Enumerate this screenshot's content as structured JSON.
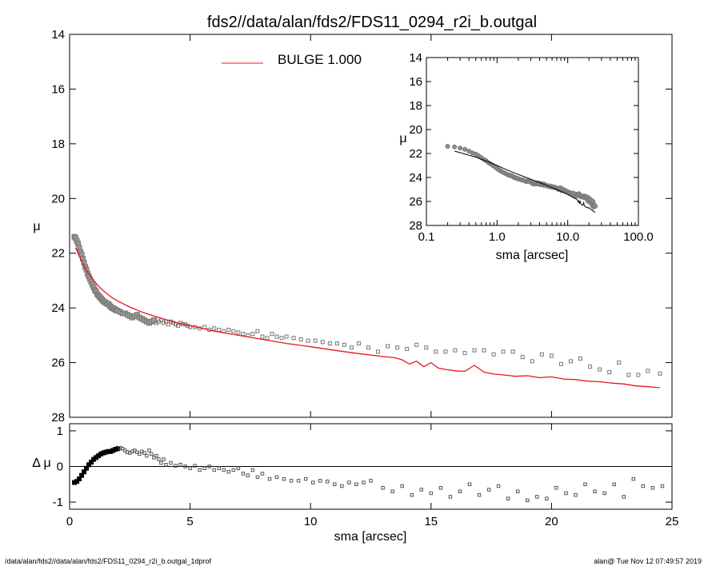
{
  "title": "fds2//data/alan/fds2/FDS11_0294_r2i_b.outgal",
  "footer": {
    "left": "/data/alan/fds2//data/alan/fds2/FDS11_0294_r2i_b.outgal_1dprof",
    "right": "alan@  Tue Nov 12 07:49:57 2019"
  },
  "colors": {
    "model": "#e8161b",
    "data": "#777777",
    "axes": "#000000",
    "residual": "#000000"
  },
  "chart_data": [
    {
      "id": "main",
      "type": "scatter",
      "ylabel": "μ",
      "xlabel": "",
      "xlim": [
        0,
        25
      ],
      "ylim": [
        28,
        14
      ],
      "yticks": [
        "14",
        "16",
        "18",
        "20",
        "22",
        "24",
        "26",
        "28"
      ],
      "xticks": [],
      "legend": {
        "label": "BULGE  1.000",
        "placement": "top"
      },
      "series": [
        {
          "role": "data",
          "marker": "square",
          "x": [
            0.2,
            0.25,
            0.3,
            0.35,
            0.4,
            0.45,
            0.5,
            0.55,
            0.6,
            0.65,
            0.7,
            0.75,
            0.8,
            0.85,
            0.9,
            0.95,
            1.0,
            1.05,
            1.1,
            1.15,
            1.2,
            1.25,
            1.3,
            1.35,
            1.4,
            1.45,
            1.5,
            1.55,
            1.6,
            1.65,
            1.7,
            1.75,
            1.8,
            1.85,
            1.9,
            1.95,
            2.0,
            2.1,
            2.2,
            2.3,
            2.4,
            2.5,
            2.6,
            2.7,
            2.8,
            2.9,
            3.0,
            3.1,
            3.2,
            3.3,
            3.4,
            3.5,
            3.6,
            3.7,
            3.8,
            3.9,
            4.0,
            4.1,
            4.2,
            4.3,
            4.4,
            4.5,
            4.6,
            4.7,
            4.8,
            4.9,
            5.0,
            5.2,
            5.4,
            5.6,
            5.8,
            6.0,
            6.2,
            6.4,
            6.6,
            6.8,
            7.0,
            7.2,
            7.4,
            7.6,
            7.8,
            8.0,
            8.2,
            8.4,
            8.6,
            8.8,
            9.0,
            9.3,
            9.6,
            9.9,
            10.2,
            10.5,
            10.8,
            11.1,
            11.4,
            11.7,
            12.0,
            12.4,
            12.8,
            13.2,
            13.6,
            14.0,
            14.4,
            14.8,
            15.2,
            15.6,
            16.0,
            16.4,
            16.8,
            17.2,
            17.6,
            18.0,
            18.4,
            18.8,
            19.2,
            19.6,
            20.0,
            20.4,
            20.8,
            21.2,
            21.6,
            22.0,
            22.4,
            22.8,
            23.2,
            23.6,
            24.0,
            24.5
          ],
          "y": [
            21.4,
            21.45,
            21.55,
            21.65,
            21.8,
            21.95,
            22.05,
            22.2,
            22.35,
            22.5,
            22.6,
            22.75,
            22.85,
            22.95,
            23.05,
            23.15,
            23.25,
            23.35,
            23.4,
            23.5,
            23.55,
            23.6,
            23.65,
            23.7,
            23.75,
            23.8,
            23.8,
            23.85,
            23.85,
            23.9,
            23.95,
            24.0,
            24.0,
            24.05,
            24.05,
            24.1,
            24.1,
            24.15,
            24.2,
            24.2,
            24.25,
            24.3,
            24.35,
            24.3,
            24.25,
            24.35,
            24.4,
            24.45,
            24.5,
            24.55,
            24.5,
            24.45,
            24.55,
            24.5,
            24.45,
            24.55,
            24.5,
            24.6,
            24.5,
            24.55,
            24.6,
            24.65,
            24.55,
            24.6,
            24.6,
            24.65,
            24.7,
            24.7,
            24.75,
            24.7,
            24.8,
            24.75,
            24.8,
            24.85,
            24.8,
            24.85,
            24.9,
            24.95,
            25.0,
            24.95,
            24.85,
            25.05,
            25.1,
            24.95,
            25.05,
            25.1,
            25.05,
            25.1,
            25.15,
            25.2,
            25.2,
            25.25,
            25.3,
            25.3,
            25.35,
            25.45,
            25.3,
            25.45,
            25.6,
            25.4,
            25.45,
            25.5,
            25.35,
            25.45,
            25.6,
            25.6,
            25.55,
            25.65,
            25.55,
            25.55,
            25.7,
            25.6,
            25.6,
            25.8,
            25.95,
            25.7,
            25.75,
            26.05,
            25.95,
            25.85,
            26.15,
            26.25,
            26.35,
            26.0,
            26.45,
            26.45,
            26.3,
            26.4
          ]
        },
        {
          "role": "model",
          "name": "BULGE  1.000",
          "line": true,
          "x": [
            0.25,
            0.5,
            0.75,
            1.0,
            1.25,
            1.5,
            1.75,
            2.0,
            2.5,
            3.0,
            3.5,
            4.0,
            4.5,
            5.0,
            6.0,
            7.0,
            8.0,
            9.0,
            10.0,
            11.0,
            12.0,
            13.0,
            13.5,
            13.8,
            14.1,
            14.4,
            14.7,
            15.0,
            15.3,
            15.6,
            16.0,
            16.4,
            16.8,
            17.2,
            17.6,
            18.0,
            18.5,
            19.0,
            19.5,
            20.0,
            20.5,
            21.0,
            21.5,
            22.0,
            22.5,
            23.0,
            23.5,
            24.0,
            24.5
          ],
          "y": [
            21.8,
            22.3,
            22.7,
            23.0,
            23.25,
            23.45,
            23.62,
            23.75,
            23.97,
            24.15,
            24.3,
            24.43,
            24.55,
            24.65,
            24.85,
            25.0,
            25.15,
            25.3,
            25.42,
            25.55,
            25.67,
            25.78,
            25.82,
            25.9,
            26.05,
            25.95,
            26.15,
            26.0,
            26.2,
            26.25,
            26.3,
            26.32,
            26.1,
            26.35,
            26.42,
            26.45,
            26.5,
            26.48,
            26.55,
            26.52,
            26.6,
            26.62,
            26.68,
            26.7,
            26.75,
            26.78,
            26.85,
            26.88,
            26.92
          ]
        }
      ]
    },
    {
      "id": "inset",
      "type": "scatter",
      "xlabel": "sma [arcsec]",
      "ylabel": "μ",
      "xscale": "log",
      "xlim": [
        0.1,
        100
      ],
      "ylim": [
        28,
        14
      ],
      "xticks": [
        "0.1",
        "1.0",
        "10.0",
        "100.0"
      ],
      "yticks": [
        "14",
        "16",
        "18",
        "20",
        "22",
        "24",
        "26",
        "28"
      ],
      "placement": "top-right"
    },
    {
      "id": "residual",
      "type": "scatter",
      "xlabel": "sma [arcsec]",
      "ylabel": "Δ μ",
      "xlim": [
        0,
        25
      ],
      "ylim": [
        -1.2,
        1.2
      ],
      "xticks": [
        "0",
        "5",
        "10",
        "15",
        "20",
        "25"
      ],
      "yticks": [
        "1",
        "0",
        "-1"
      ],
      "zero_line": true,
      "series": [
        {
          "role": "residual",
          "marker": "square",
          "x": [
            0.2,
            0.3,
            0.4,
            0.5,
            0.6,
            0.7,
            0.8,
            0.9,
            1.0,
            1.1,
            1.2,
            1.3,
            1.4,
            1.5,
            1.6,
            1.7,
            1.8,
            1.9,
            2.0,
            2.1,
            2.2,
            2.3,
            2.4,
            2.5,
            2.6,
            2.7,
            2.8,
            2.9,
            3.0,
            3.1,
            3.2,
            3.3,
            3.4,
            3.5,
            3.6,
            3.7,
            3.8,
            3.9,
            4.0,
            4.2,
            4.4,
            4.6,
            4.8,
            5.0,
            5.2,
            5.4,
            5.6,
            5.8,
            6.0,
            6.2,
            6.4,
            6.6,
            6.8,
            7.0,
            7.2,
            7.4,
            7.6,
            7.8,
            8.0,
            8.3,
            8.6,
            8.9,
            9.2,
            9.5,
            9.8,
            10.1,
            10.4,
            10.7,
            11.0,
            11.3,
            11.6,
            11.9,
            12.2,
            12.5,
            13.0,
            13.4,
            13.8,
            14.2,
            14.6,
            15.0,
            15.4,
            15.8,
            16.2,
            16.6,
            17.0,
            17.4,
            17.8,
            18.2,
            18.6,
            19.0,
            19.4,
            19.8,
            20.2,
            20.6,
            21.0,
            21.4,
            21.8,
            22.2,
            22.6,
            23.0,
            23.4,
            23.8,
            24.2,
            24.6
          ],
          "y": [
            -0.45,
            -0.42,
            -0.35,
            -0.25,
            -0.15,
            -0.05,
            0.05,
            0.12,
            0.2,
            0.25,
            0.3,
            0.35,
            0.38,
            0.4,
            0.42,
            0.42,
            0.45,
            0.48,
            0.5,
            0.52,
            0.5,
            0.45,
            0.4,
            0.38,
            0.42,
            0.45,
            0.4,
            0.35,
            0.42,
            0.38,
            0.3,
            0.45,
            0.35,
            0.25,
            0.3,
            0.2,
            0.1,
            0.2,
            0.05,
            0.1,
            0.02,
            0.05,
            0.0,
            -0.05,
            0.02,
            -0.1,
            -0.05,
            0.0,
            -0.1,
            -0.05,
            -0.1,
            -0.15,
            -0.1,
            -0.05,
            -0.2,
            -0.25,
            -0.1,
            -0.3,
            -0.2,
            -0.35,
            -0.3,
            -0.35,
            -0.4,
            -0.4,
            -0.35,
            -0.45,
            -0.4,
            -0.42,
            -0.5,
            -0.55,
            -0.45,
            -0.5,
            -0.45,
            -0.4,
            -0.6,
            -0.7,
            -0.55,
            -0.8,
            -0.65,
            -0.75,
            -0.6,
            -0.85,
            -0.7,
            -0.5,
            -0.8,
            -0.65,
            -0.55,
            -0.9,
            -0.7,
            -0.95,
            -0.85,
            -0.9,
            -0.6,
            -0.75,
            -0.8,
            -0.5,
            -0.7,
            -0.75,
            -0.5,
            -0.85,
            -0.35,
            -0.55,
            -0.6,
            -0.55
          ]
        }
      ]
    }
  ]
}
